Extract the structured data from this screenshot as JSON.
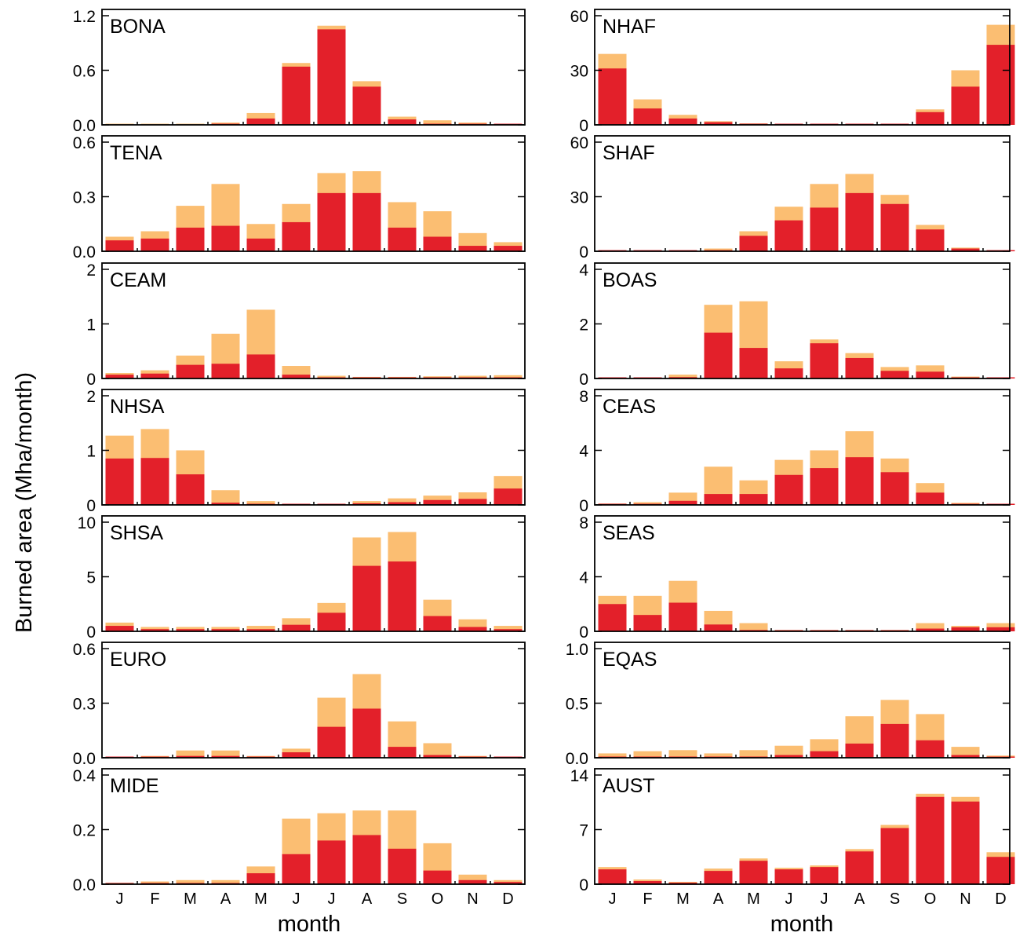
{
  "figure": {
    "ylabel": "Burned area (Mha/month)",
    "xlabel": "month",
    "months": [
      "J",
      "F",
      "M",
      "A",
      "M",
      "J",
      "J",
      "A",
      "S",
      "O",
      "N",
      "D"
    ],
    "colors": {
      "primary": "#e3202a",
      "secondary": "#fbbe72"
    }
  },
  "chart_data": [
    {
      "type": "bar",
      "region": "BONA",
      "column": 0,
      "row": 0,
      "yticks": [
        "0.0",
        "0.6",
        "1.2"
      ],
      "ylim": [
        0,
        1.2
      ],
      "series": [
        {
          "values": [
            0.0,
            0.0,
            0.0,
            0.005,
            0.07,
            0.64,
            1.05,
            0.42,
            0.06,
            0.005,
            0.003,
            0.002
          ]
        },
        {
          "values": [
            0.005,
            0.005,
            0.005,
            0.025,
            0.13,
            0.68,
            1.09,
            0.48,
            0.09,
            0.05,
            0.025,
            0.007
          ]
        }
      ]
    },
    {
      "type": "bar",
      "region": "TENA",
      "column": 0,
      "row": 1,
      "yticks": [
        "0.0",
        "0.3",
        "0.6"
      ],
      "ylim": [
        0,
        0.6
      ],
      "series": [
        {
          "values": [
            0.06,
            0.07,
            0.13,
            0.14,
            0.07,
            0.16,
            0.32,
            0.32,
            0.13,
            0.08,
            0.03,
            0.03
          ]
        },
        {
          "values": [
            0.08,
            0.11,
            0.25,
            0.37,
            0.15,
            0.26,
            0.43,
            0.44,
            0.27,
            0.22,
            0.1,
            0.05
          ]
        }
      ]
    },
    {
      "type": "bar",
      "region": "CEAM",
      "column": 0,
      "row": 2,
      "yticks": [
        "0",
        "1",
        "2"
      ],
      "ylim": [
        0,
        2
      ],
      "series": [
        {
          "values": [
            0.07,
            0.09,
            0.25,
            0.27,
            0.44,
            0.07,
            0.01,
            0.01,
            0.01,
            0.01,
            0.02,
            0.02
          ]
        },
        {
          "values": [
            0.1,
            0.15,
            0.42,
            0.82,
            1.26,
            0.23,
            0.05,
            0.03,
            0.03,
            0.04,
            0.05,
            0.06
          ]
        }
      ]
    },
    {
      "type": "bar",
      "region": "NHSA",
      "column": 0,
      "row": 3,
      "yticks": [
        "0",
        "1",
        "2"
      ],
      "ylim": [
        0,
        2
      ],
      "series": [
        {
          "values": [
            0.85,
            0.86,
            0.56,
            0.04,
            0.01,
            0.01,
            0.01,
            0.03,
            0.05,
            0.09,
            0.11,
            0.3
          ]
        },
        {
          "values": [
            1.27,
            1.39,
            1.0,
            0.27,
            0.07,
            0.02,
            0.02,
            0.07,
            0.12,
            0.17,
            0.23,
            0.53
          ]
        }
      ]
    },
    {
      "type": "bar",
      "region": "SHSA",
      "column": 0,
      "row": 4,
      "yticks": [
        "0",
        "5",
        "10"
      ],
      "ylim": [
        0,
        10
      ],
      "series": [
        {
          "values": [
            0.5,
            0.2,
            0.2,
            0.2,
            0.2,
            0.6,
            1.7,
            6.0,
            6.4,
            1.4,
            0.4,
            0.2
          ]
        },
        {
          "values": [
            0.8,
            0.4,
            0.4,
            0.4,
            0.5,
            1.2,
            2.6,
            8.6,
            9.1,
            2.9,
            1.1,
            0.5
          ]
        }
      ]
    },
    {
      "type": "bar",
      "region": "EURO",
      "column": 0,
      "row": 5,
      "yticks": [
        "0.0",
        "0.3",
        "0.6"
      ],
      "ylim": [
        0,
        0.6
      ],
      "series": [
        {
          "values": [
            0.002,
            0.003,
            0.01,
            0.01,
            0.004,
            0.03,
            0.17,
            0.27,
            0.06,
            0.015,
            0.003,
            0.002
          ]
        },
        {
          "values": [
            0.004,
            0.01,
            0.04,
            0.04,
            0.01,
            0.05,
            0.33,
            0.46,
            0.2,
            0.08,
            0.01,
            0.005
          ]
        }
      ]
    },
    {
      "type": "bar",
      "region": "MIDE",
      "column": 0,
      "row": 6,
      "yticks": [
        "0.0",
        "0.2",
        "0.4"
      ],
      "ylim": [
        0,
        0.4
      ],
      "series": [
        {
          "values": [
            0.001,
            0.002,
            0.003,
            0.003,
            0.04,
            0.11,
            0.16,
            0.18,
            0.13,
            0.05,
            0.015,
            0.008
          ]
        },
        {
          "values": [
            0.005,
            0.01,
            0.015,
            0.015,
            0.065,
            0.24,
            0.26,
            0.27,
            0.27,
            0.15,
            0.035,
            0.015
          ]
        }
      ]
    },
    {
      "type": "bar",
      "region": "NHAF",
      "column": 1,
      "row": 0,
      "yticks": [
        "0",
        "30",
        "60"
      ],
      "ylim": [
        0,
        60
      ],
      "series": [
        {
          "values": [
            31.0,
            9.0,
            3.5,
            1.5,
            0.5,
            0.1,
            0.1,
            0.1,
            0.3,
            7.0,
            21.0,
            44.0
          ]
        },
        {
          "values": [
            39.0,
            14.0,
            5.5,
            2.0,
            0.8,
            0.2,
            0.1,
            0.1,
            0.5,
            8.5,
            30.0,
            55.0
          ]
        }
      ]
    },
    {
      "type": "bar",
      "region": "SHAF",
      "column": 1,
      "row": 1,
      "yticks": [
        "0",
        "30",
        "60"
      ],
      "ylim": [
        0,
        60
      ],
      "series": [
        {
          "values": [
            0.1,
            0.1,
            0.1,
            0.4,
            8.5,
            17.0,
            24.0,
            32.0,
            26.0,
            12.0,
            1.5,
            0.1
          ]
        },
        {
          "values": [
            0.3,
            0.3,
            0.6,
            1.5,
            11.0,
            24.5,
            37.0,
            42.5,
            31.0,
            14.5,
            2.0,
            0.3
          ]
        }
      ]
    },
    {
      "type": "bar",
      "region": "BOAS",
      "column": 1,
      "row": 2,
      "yticks": [
        "0",
        "2",
        "4"
      ],
      "ylim": [
        0,
        4
      ],
      "series": [
        {
          "values": [
            0.01,
            0.01,
            0.05,
            1.68,
            1.12,
            0.37,
            1.29,
            0.75,
            0.28,
            0.25,
            0.02,
            0.01
          ]
        },
        {
          "values": [
            0.02,
            0.03,
            0.14,
            2.7,
            2.83,
            0.63,
            1.43,
            0.93,
            0.42,
            0.48,
            0.07,
            0.03
          ]
        }
      ]
    },
    {
      "type": "bar",
      "region": "CEAS",
      "column": 1,
      "row": 3,
      "yticks": [
        "0",
        "4",
        "8"
      ],
      "ylim": [
        0,
        8
      ],
      "series": [
        {
          "values": [
            0.02,
            0.04,
            0.3,
            0.8,
            0.8,
            2.2,
            2.7,
            3.5,
            2.4,
            0.9,
            0.04,
            0.02
          ]
        },
        {
          "values": [
            0.1,
            0.2,
            0.9,
            2.8,
            1.8,
            3.3,
            4.0,
            5.4,
            3.4,
            1.6,
            0.15,
            0.08
          ]
        }
      ]
    },
    {
      "type": "bar",
      "region": "SEAS",
      "column": 1,
      "row": 4,
      "yticks": [
        "0",
        "4",
        "8"
      ],
      "ylim": [
        0,
        8
      ],
      "series": [
        {
          "values": [
            2.0,
            1.2,
            2.1,
            0.5,
            0.1,
            0.02,
            0.02,
            0.02,
            0.02,
            0.2,
            0.3,
            0.3
          ]
        },
        {
          "values": [
            2.6,
            2.6,
            3.7,
            1.5,
            0.6,
            0.1,
            0.1,
            0.1,
            0.1,
            0.6,
            0.4,
            0.6
          ]
        }
      ]
    },
    {
      "type": "bar",
      "region": "EQAS",
      "column": 1,
      "row": 5,
      "yticks": [
        "0.0",
        "0.5",
        "1.0"
      ],
      "ylim": [
        0,
        1.0
      ],
      "series": [
        {
          "values": [
            0.005,
            0.005,
            0.005,
            0.005,
            0.01,
            0.025,
            0.06,
            0.13,
            0.31,
            0.16,
            0.025,
            0.005
          ]
        },
        {
          "values": [
            0.04,
            0.06,
            0.07,
            0.04,
            0.07,
            0.11,
            0.17,
            0.38,
            0.53,
            0.4,
            0.1,
            0.02
          ]
        }
      ]
    },
    {
      "type": "bar",
      "region": "AUST",
      "column": 1,
      "row": 6,
      "yticks": [
        "0",
        "7",
        "14"
      ],
      "ylim": [
        0,
        14
      ],
      "series": [
        {
          "values": [
            1.9,
            0.4,
            0.2,
            1.7,
            3.0,
            1.9,
            2.2,
            4.2,
            7.2,
            11.2,
            10.6,
            3.5
          ]
        },
        {
          "values": [
            2.2,
            0.6,
            0.3,
            2.0,
            3.3,
            2.1,
            2.4,
            4.5,
            7.6,
            11.6,
            11.2,
            4.1
          ]
        }
      ]
    }
  ]
}
